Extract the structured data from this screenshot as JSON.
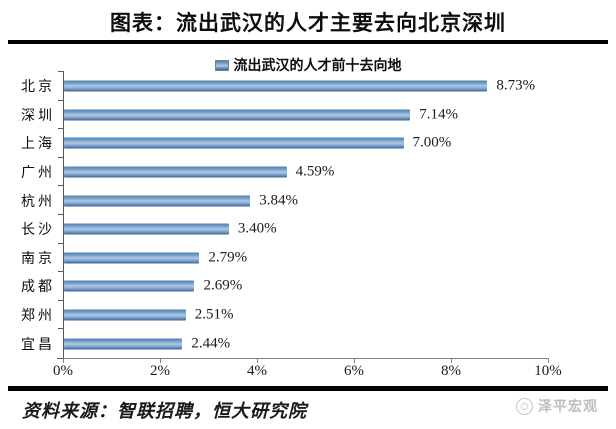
{
  "title": "图表：流出武汉的人才主要去向北京深圳",
  "source": "资料来源：智联招聘，恒大研究院",
  "watermark": {
    "text": "泽平宏观"
  },
  "colors": {
    "bar_top": "#4d7fae",
    "bar_mid": "#adc8e4",
    "bar_bottom": "#3a6195",
    "axis": "#808080",
    "rule": "#000000",
    "watermark_gray": "#bdbdbd"
  },
  "chart_data": {
    "type": "bar",
    "orientation": "horizontal",
    "title": "图表：流出武汉的人才主要去向北京深圳",
    "legend": "流出武汉的人才前十去向地",
    "legend_position": "top-center",
    "categories": [
      "北京",
      "深圳",
      "上海",
      "广州",
      "杭州",
      "长沙",
      "南京",
      "成都",
      "郑州",
      "宜昌"
    ],
    "values": [
      8.73,
      7.14,
      7.0,
      4.59,
      3.84,
      3.4,
      2.79,
      2.69,
      2.51,
      2.44
    ],
    "value_labels": [
      "8.73%",
      "7.14%",
      "7.00%",
      "4.59%",
      "3.84%",
      "3.40%",
      "2.79%",
      "2.69%",
      "2.51%",
      "2.44%"
    ],
    "xlabel": "",
    "ylabel": "",
    "xlim": [
      0,
      10
    ],
    "x_tick_labels": [
      "0%",
      "2%",
      "4%",
      "6%",
      "8%",
      "10%"
    ],
    "x_tick_values": [
      0,
      2,
      4,
      6,
      8,
      10
    ],
    "grid": false
  }
}
